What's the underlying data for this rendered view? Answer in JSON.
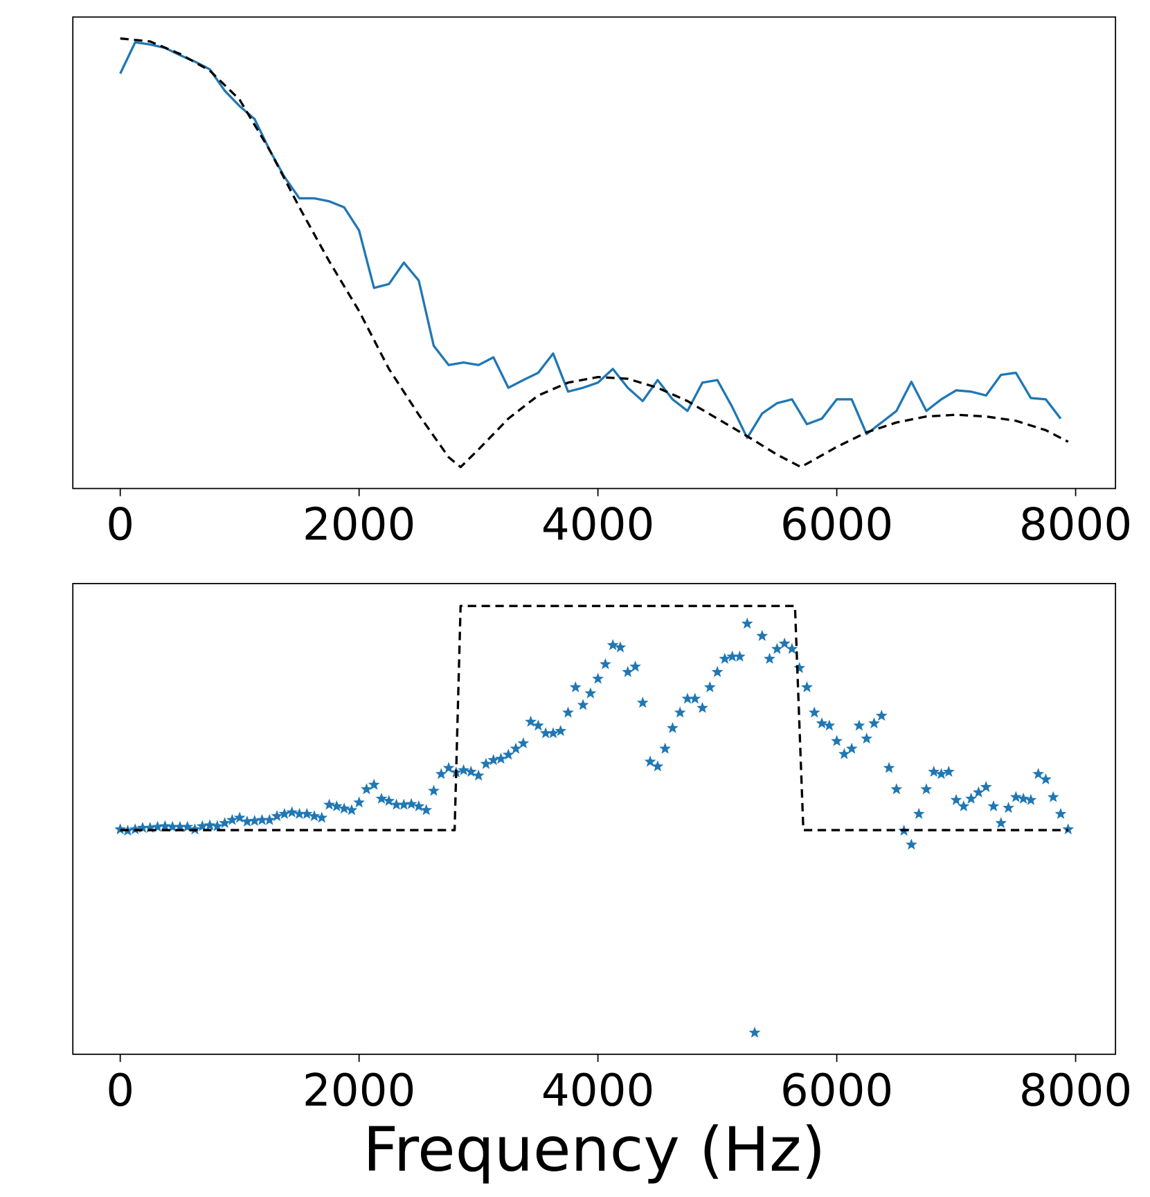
{
  "chart_data": [
    {
      "type": "line",
      "xlim": [
        -397,
        8334
      ],
      "xticks": [
        0,
        2000,
        4000,
        6000,
        8000
      ],
      "ylim": [
        -0.05,
        1.05
      ],
      "series": [
        {
          "type": "line",
          "color": "#1f77b4",
          "linestyle": "solid",
          "x": [
            0,
            125,
            250,
            375,
            500,
            625,
            750,
            875,
            1000,
            1125,
            1250,
            1375,
            1500,
            1625,
            1750,
            1875,
            2000,
            2125,
            2250,
            2375,
            2500,
            2625,
            2750,
            2875,
            3000,
            3125,
            3250,
            3375,
            3500,
            3625,
            3750,
            3875,
            4000,
            4125,
            4250,
            4375,
            4500,
            4625,
            4750,
            4875,
            5000,
            5125,
            5250,
            5375,
            5500,
            5625,
            5750,
            5875,
            6000,
            6125,
            6250,
            6375,
            6500,
            6625,
            6750,
            6875,
            7000,
            7125,
            7250,
            7375,
            7500,
            7625,
            7750,
            7875
          ],
          "values": [
            0.918,
            0.991,
            0.986,
            0.978,
            0.961,
            0.946,
            0.928,
            0.878,
            0.842,
            0.812,
            0.74,
            0.677,
            0.627,
            0.627,
            0.62,
            0.606,
            0.552,
            0.418,
            0.427,
            0.477,
            0.435,
            0.283,
            0.238,
            0.244,
            0.238,
            0.256,
            0.185,
            0.203,
            0.22,
            0.265,
            0.176,
            0.185,
            0.197,
            0.229,
            0.185,
            0.154,
            0.203,
            0.158,
            0.131,
            0.197,
            0.203,
            0.14,
            0.068,
            0.125,
            0.149,
            0.158,
            0.1,
            0.113,
            0.158,
            0.158,
            0.077,
            0.104,
            0.131,
            0.199,
            0.131,
            0.158,
            0.179,
            0.176,
            0.167,
            0.215,
            0.22,
            0.161,
            0.158,
            0.113
          ]
        },
        {
          "type": "line",
          "color": "#000000",
          "linestyle": "dashed",
          "x": [
            0,
            250,
            500,
            750,
            1000,
            1250,
            1500,
            1750,
            2000,
            2250,
            2500,
            2750,
            2850,
            3000,
            3250,
            3500,
            3750,
            4000,
            4250,
            4500,
            4750,
            5000,
            5250,
            5500,
            5700,
            6000,
            6250,
            6500,
            6750,
            7000,
            7250,
            7500,
            7750,
            7937.5
          ],
          "values": [
            1.0,
            0.993,
            0.964,
            0.925,
            0.857,
            0.74,
            0.606,
            0.48,
            0.364,
            0.229,
            0.122,
            0.023,
            0,
            0.041,
            0.113,
            0.167,
            0.197,
            0.21,
            0.206,
            0.185,
            0.154,
            0.113,
            0.072,
            0.029,
            0,
            0.047,
            0.081,
            0.104,
            0.118,
            0.122,
            0.118,
            0.108,
            0.086,
            0.059
          ]
        }
      ]
    },
    {
      "type": "scatter",
      "xlabel": "Frequency (Hz)",
      "xlim": [
        -397,
        8334
      ],
      "xticks": [
        0,
        2000,
        4000,
        6000,
        8000
      ],
      "ylim": [
        -1.0,
        1.1
      ],
      "series": [
        {
          "type": "scatter",
          "color": "#1f77b4",
          "marker": "star",
          "x": [
            0,
            62.5,
            125,
            187.5,
            250,
            312.5,
            375,
            437.5,
            500,
            562.5,
            625,
            687.5,
            750,
            812.5,
            875,
            937.5,
            1000,
            1062.5,
            1125,
            1187.5,
            1250,
            1312.5,
            1375,
            1437.5,
            1500,
            1562.5,
            1625,
            1687.5,
            1750,
            1812.5,
            1875,
            1937.5,
            2000,
            2062.5,
            2125,
            2187.5,
            2250,
            2312.5,
            2375,
            2437.5,
            2500,
            2562.5,
            2625,
            2687.5,
            2750,
            2812.5,
            2875,
            2937.5,
            3000,
            3062.5,
            3125,
            3187.5,
            3250,
            3312.5,
            3375,
            3437.5,
            3500,
            3562.5,
            3625,
            3687.5,
            3750,
            3812.5,
            3875,
            3937.5,
            4000,
            4062.5,
            4125,
            4187.5,
            4250,
            4312.5,
            4375,
            4437.5,
            4500,
            4562.5,
            4625,
            4687.5,
            4750,
            4812.5,
            4875,
            4937.5,
            5000,
            5062.5,
            5125,
            5187.5,
            5250,
            5312.5,
            5375,
            5437.5,
            5500,
            5562.5,
            5625,
            5687.5,
            5750,
            5812.5,
            5875,
            5937.5,
            6000,
            6062.5,
            6125,
            6187.5,
            6250,
            6312.5,
            6375,
            6437.5,
            6500,
            6562.5,
            6625,
            6687.5,
            6750,
            6812.5,
            6875,
            6937.5,
            7000,
            7062.5,
            7125,
            7187.5,
            7250,
            7312.5,
            7375,
            7437.5,
            7500,
            7562.5,
            7625,
            7687.5,
            7750,
            7812.5,
            7875,
            7937.5
          ],
          "values": [
            0.003,
            -0.003,
            0.003,
            0.01,
            0.01,
            0.014,
            0.017,
            0.014,
            0.014,
            0.014,
            0.003,
            0.017,
            0.021,
            0.017,
            0.031,
            0.045,
            0.055,
            0.038,
            0.041,
            0.045,
            0.045,
            0.062,
            0.072,
            0.079,
            0.072,
            0.072,
            0.062,
            0.055,
            0.113,
            0.106,
            0.096,
            0.089,
            0.123,
            0.182,
            0.202,
            0.14,
            0.13,
            0.113,
            0.113,
            0.116,
            0.106,
            0.089,
            0.175,
            0.25,
            0.277,
            0.257,
            0.267,
            0.26,
            0.243,
            0.295,
            0.312,
            0.318,
            0.336,
            0.363,
            0.387,
            0.483,
            0.466,
            0.432,
            0.432,
            0.442,
            0.524,
            0.637,
            0.558,
            0.61,
            0.675,
            0.74,
            0.825,
            0.815,
            0.705,
            0.729,
            0.568,
            0.305,
            0.284,
            0.363,
            0.455,
            0.524,
            0.586,
            0.586,
            0.545,
            0.637,
            0.705,
            0.764,
            0.774,
            0.774,
            0.921,
            -0.904,
            0.866,
            0.764,
            0.808,
            0.832,
            0.808,
            0.723,
            0.637,
            0.524,
            0.476,
            0.466,
            0.397,
            0.339,
            0.363,
            0.466,
            0.408,
            0.476,
            0.51,
            0.277,
            0.182,
            -0.003,
            -0.065,
            0.072,
            0.182,
            0.26,
            0.25,
            0.26,
            0.134,
            0.106,
            0.14,
            0.168,
            0.192,
            0.106,
            0.031,
            0.099,
            0.147,
            0.14,
            0.134,
            0.25,
            0.226,
            0.147,
            0.072,
            0.003
          ]
        },
        {
          "type": "line",
          "color": "#000000",
          "linestyle": "dashed",
          "x": [
            0,
            2800,
            2850,
            5650,
            5720,
            7937.5
          ],
          "values": [
            0,
            0,
            1,
            1,
            0,
            0
          ]
        }
      ]
    }
  ]
}
